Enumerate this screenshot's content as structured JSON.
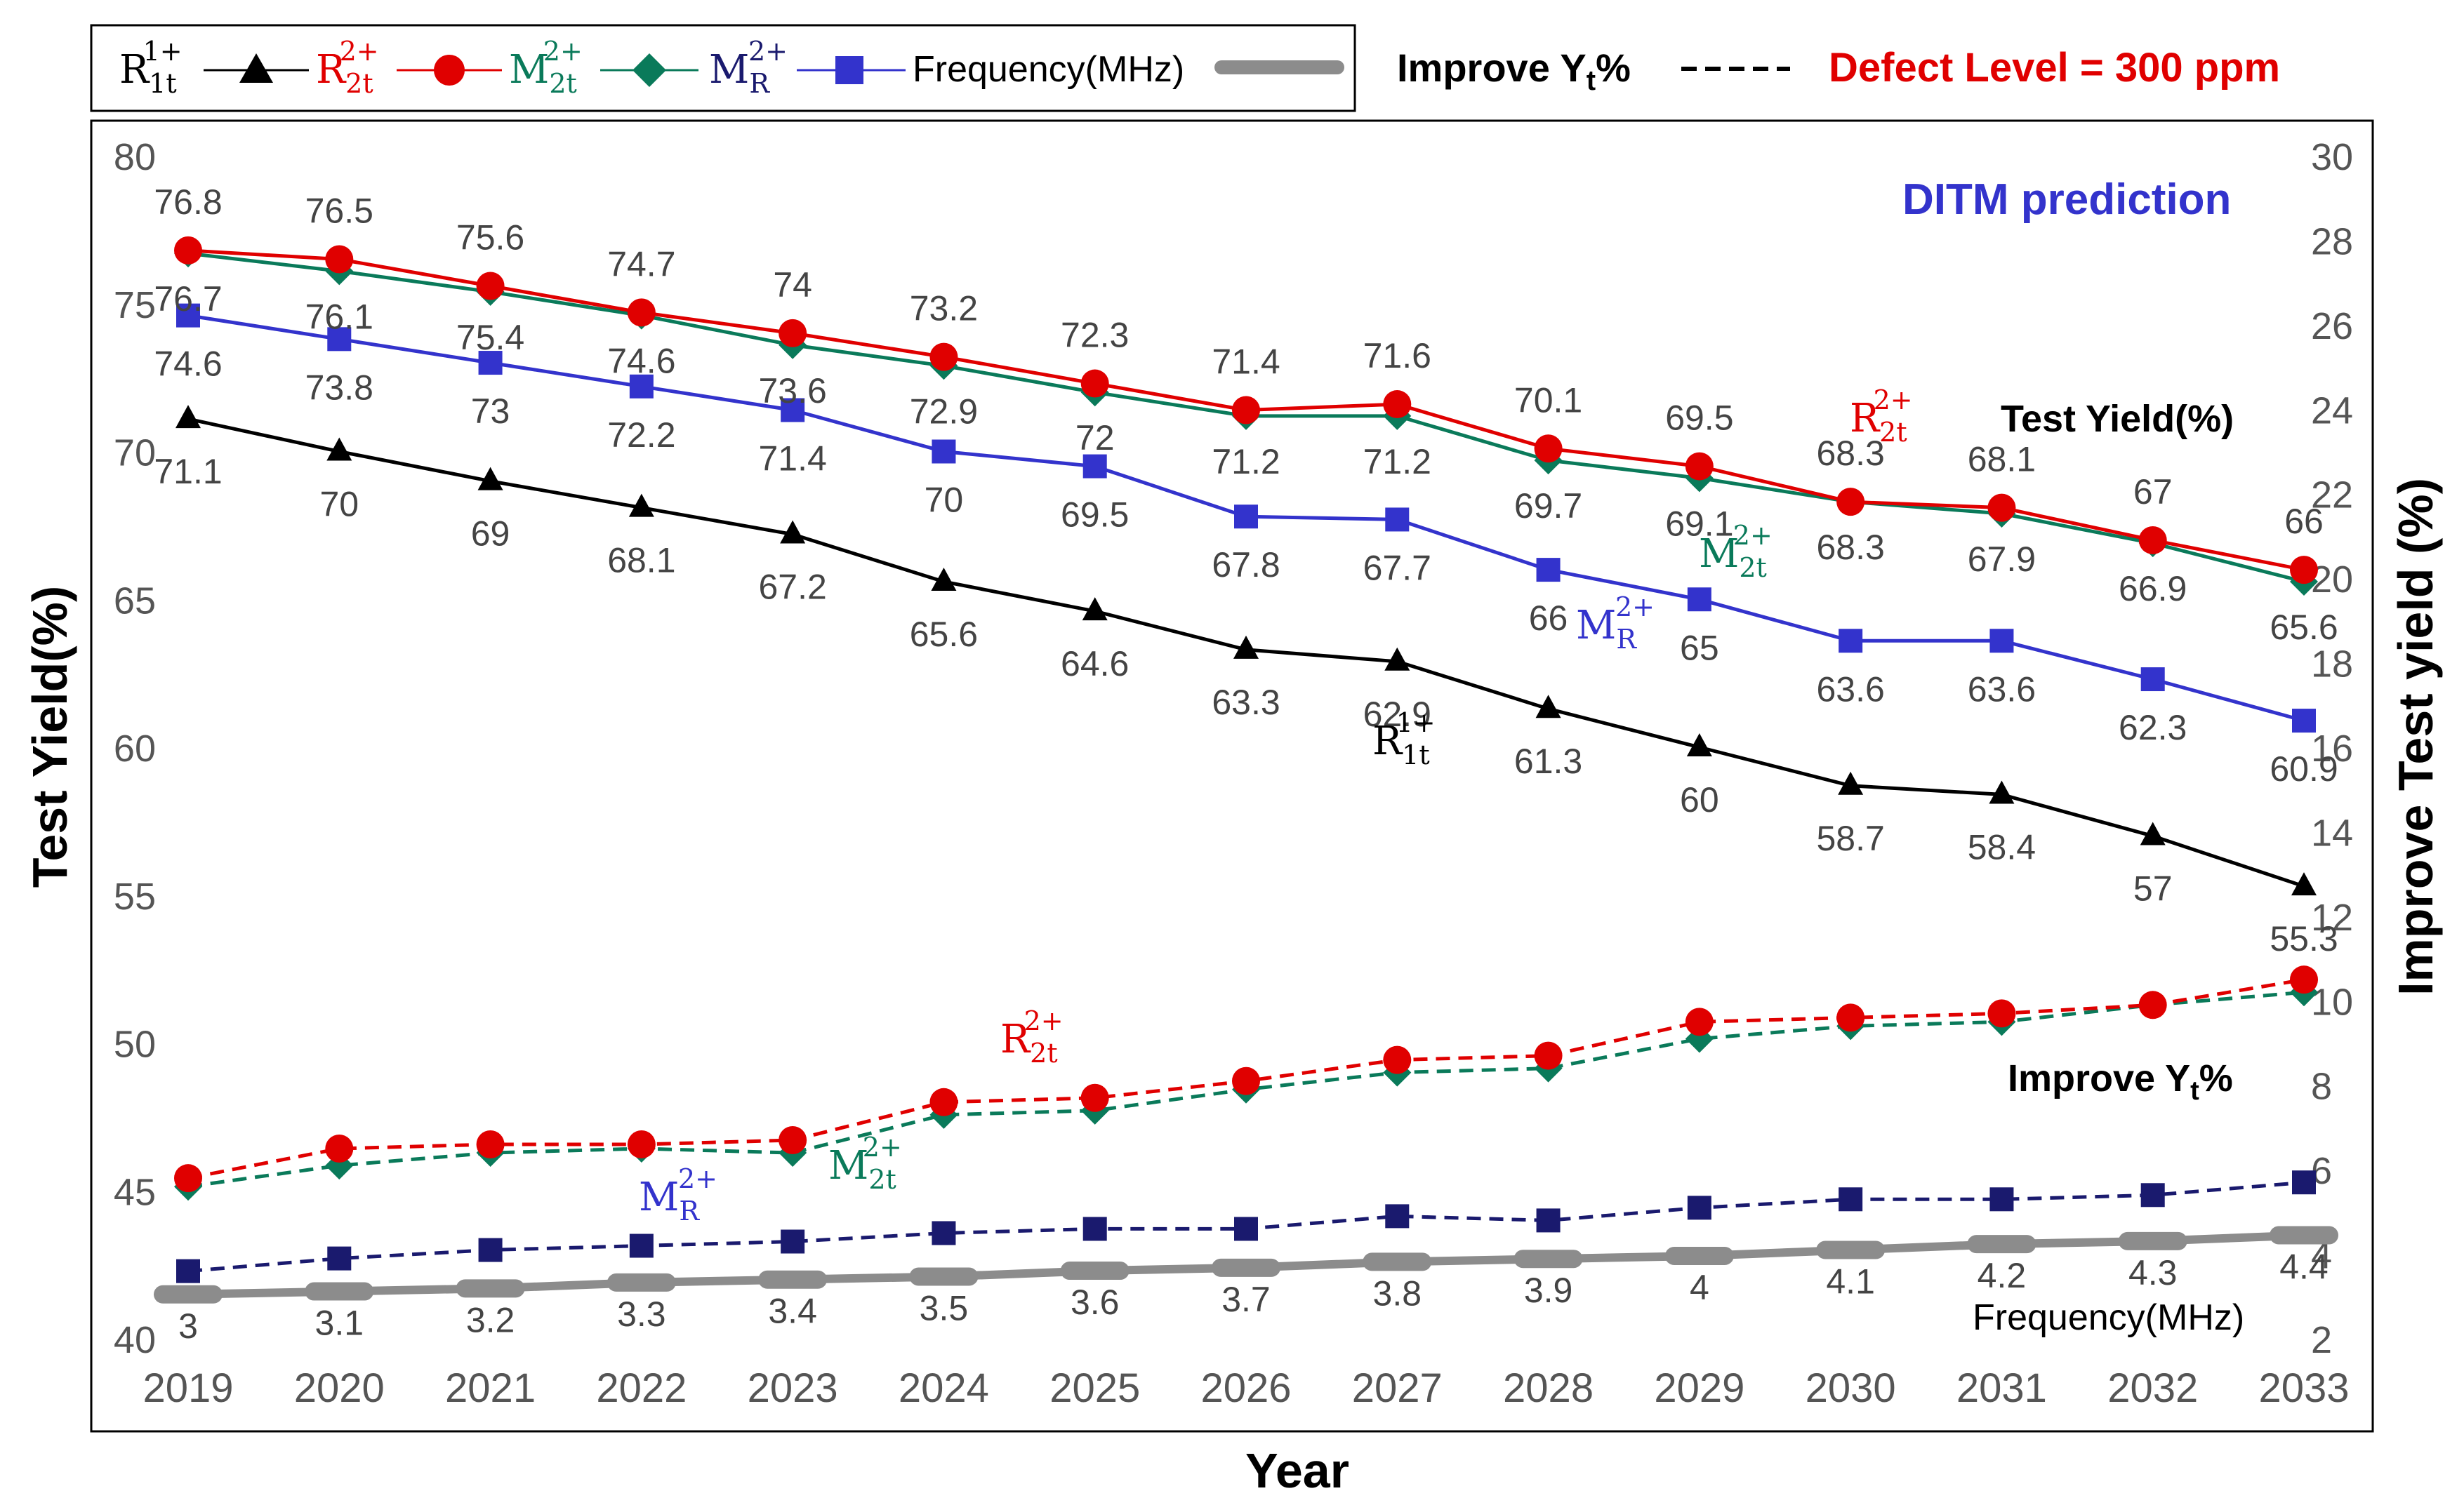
{
  "chart_data": {
    "type": "line",
    "title": "",
    "xlabel": "Year",
    "ylabel_left": "Test Yield(%)",
    "ylabel_right": "Improve Test yield (%)",
    "categories": [
      "2019",
      "2020",
      "2021",
      "2022",
      "2023",
      "2024",
      "2025",
      "2026",
      "2027",
      "2028",
      "2029",
      "2030",
      "2031",
      "2032",
      "2033"
    ],
    "ylim_left": [
      40,
      80
    ],
    "yticks_left": [
      40,
      45,
      50,
      55,
      60,
      65,
      70,
      75,
      80
    ],
    "ylim_right": [
      2,
      30
    ],
    "yticks_right": [
      2,
      4,
      6,
      8,
      10,
      12,
      14,
      16,
      18,
      20,
      22,
      24,
      26,
      28,
      30
    ],
    "legend": {
      "placement": "top-left",
      "entries": [
        {
          "base": "R",
          "sup": "1+",
          "sub": "1t",
          "marker": "triangle",
          "color": "#000000"
        },
        {
          "base": "R",
          "sup": "2+",
          "sub": "2t",
          "marker": "circle",
          "color": "#e00000"
        },
        {
          "base": "M",
          "sup": "2+",
          "sub": "2t",
          "marker": "diamond",
          "color": "#0a7a5a"
        },
        {
          "base": "M",
          "sup": "2+",
          "sub": "R",
          "marker": "square",
          "color": "#3333cc"
        },
        {
          "text": "Frequency(MHz)",
          "marker": "thick-line",
          "color": "#8c8c8c"
        }
      ],
      "improve_label": "Improve Y",
      "improve_sub": "t",
      "improve_suffix": "%",
      "defect_label": "Defect Level = 300 ppm"
    },
    "annotations": {
      "ditm": "DITM prediction",
      "test_yield": "Test Yield(%)",
      "improve_yt_base": "Improve Y",
      "improve_yt_sub": "t",
      "improve_yt_suffix": "%",
      "frequency": "Frequency(MHz)",
      "r2t_top": {
        "base": "R",
        "sup": "2+",
        "sub": "2t"
      },
      "m2t_top": {
        "base": "M",
        "sup": "2+",
        "sub": "2t"
      },
      "mr_top": {
        "base": "M",
        "sup": "2+",
        "sub": "R"
      },
      "r1t_top": {
        "base": "R",
        "sup": "1+",
        "sub": "1t"
      },
      "r2t_bottom": {
        "base": "R",
        "sup": "2+",
        "sub": "2t"
      },
      "m2t_bottom": {
        "base": "M",
        "sup": "2+",
        "sub": "2t"
      },
      "mr_bottom": {
        "base": "M",
        "sup": "2+",
        "sub": "R"
      }
    },
    "series": [
      {
        "name": "R1t 1+ Test Yield",
        "axis": "left",
        "marker": "triangle",
        "color": "#000000",
        "dashed": false,
        "labels": true,
        "values": [
          71.1,
          70,
          69,
          68.1,
          67.2,
          65.6,
          64.6,
          63.3,
          62.9,
          61.3,
          60,
          58.7,
          58.4,
          57,
          55.3
        ]
      },
      {
        "name": "R2t 2+ Test Yield",
        "axis": "left",
        "marker": "circle",
        "color": "#e00000",
        "dashed": false,
        "labels": true,
        "values": [
          76.8,
          76.5,
          75.6,
          74.7,
          74,
          73.2,
          72.3,
          71.4,
          71.6,
          70.1,
          69.5,
          68.3,
          68.1,
          67,
          66
        ]
      },
      {
        "name": "M2t 2+ Test Yield",
        "axis": "left",
        "marker": "diamond",
        "color": "#0a7a5a",
        "dashed": false,
        "labels": true,
        "values": [
          76.7,
          76.1,
          75.4,
          74.6,
          73.6,
          72.9,
          72,
          71.2,
          71.2,
          69.7,
          69.1,
          68.3,
          67.9,
          66.9,
          65.6
        ]
      },
      {
        "name": "MR 2+ Test Yield",
        "axis": "left",
        "marker": "square",
        "color": "#3333cc",
        "dashed": false,
        "labels": true,
        "values": [
          74.6,
          73.8,
          73,
          72.2,
          71.4,
          70,
          69.5,
          67.8,
          67.7,
          66,
          65,
          63.6,
          63.6,
          62.3,
          60.9
        ]
      },
      {
        "name": "Frequency(MHz)",
        "axis": "left",
        "marker": "bar",
        "color": "#8c8c8c",
        "dashed": false,
        "labels": true,
        "values": [
          41.5,
          41.6,
          41.7,
          41.9,
          42.0,
          42.1,
          42.3,
          42.4,
          42.6,
          42.7,
          42.8,
          43.0,
          43.2,
          43.3,
          43.5
        ],
        "label_values": [
          "3",
          "3.1",
          "3.2",
          "3.3",
          "3.4",
          "3.5",
          "3.6",
          "3.7",
          "3.8",
          "3.9",
          "4",
          "4.1",
          "4.2",
          "4.3",
          "4.4"
        ]
      },
      {
        "name": "R2t Improve Yt%",
        "axis": "right",
        "marker": "circle",
        "color": "#e00000",
        "dashed": true,
        "labels": false,
        "values": [
          5.8,
          6.5,
          6.6,
          6.6,
          6.7,
          7.6,
          7.7,
          8.1,
          8.6,
          8.7,
          9.5,
          9.6,
          9.7,
          9.9,
          10.5
        ]
      },
      {
        "name": "M2t Improve Yt%",
        "axis": "right",
        "marker": "diamond",
        "color": "#0a7a5a",
        "dashed": true,
        "labels": false,
        "values": [
          5.6,
          6.1,
          6.4,
          6.5,
          6.4,
          7.3,
          7.4,
          7.9,
          8.3,
          8.4,
          9.1,
          9.4,
          9.5,
          9.9,
          10.2
        ]
      },
      {
        "name": "MR Improve Yt%",
        "axis": "right",
        "marker": "square",
        "color": "#1a1a6e",
        "dashed": true,
        "labels": false,
        "values": [
          3.6,
          3.9,
          4.1,
          4.2,
          4.3,
          4.5,
          4.6,
          4.6,
          4.9,
          4.8,
          5.1,
          5.3,
          5.3,
          5.4,
          5.7
        ]
      }
    ]
  }
}
